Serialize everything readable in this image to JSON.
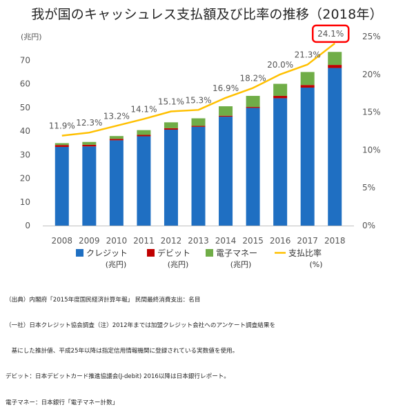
{
  "title": "我が国のキャッシュレス支払額及び比率の推移（2018年）",
  "chart_data": {
    "type": "bar",
    "stacked": true,
    "categories": [
      "2008",
      "2009",
      "2010",
      "2011",
      "2012",
      "2013",
      "2014",
      "2015",
      "2016",
      "2017",
      "2018"
    ],
    "series": [
      {
        "name": "クレジット",
        "unit": "(兆円)",
        "color": "#1f6fc2",
        "values": [
          33.3,
          33.5,
          36.1,
          37.8,
          40.6,
          41.8,
          46.1,
          49.8,
          53.9,
          58.4,
          66.7
        ]
      },
      {
        "name": "デビット",
        "unit": "(兆円)",
        "color": "#c00000",
        "values": [
          0.8,
          0.7,
          0.6,
          0.6,
          0.6,
          0.4,
          0.4,
          0.4,
          1.0,
          1.1,
          1.3
        ]
      },
      {
        "name": "電子マネー",
        "unit": "(兆円)",
        "color": "#70ad47",
        "values": [
          0.8,
          1.2,
          1.2,
          2.0,
          2.5,
          3.2,
          4.0,
          4.7,
          5.1,
          5.5,
          5.5
        ]
      }
    ],
    "line_series": {
      "name": "支払比率",
      "unit": "(%)",
      "color": "#ffc000",
      "values": [
        11.9,
        12.3,
        13.2,
        14.1,
        15.1,
        15.3,
        16.9,
        18.2,
        20.0,
        21.3,
        24.1
      ],
      "labels": [
        "11.9%",
        "12.3%",
        "13.2%",
        "14.1%",
        "15.1%",
        "15.3%",
        "16.9%",
        "18.2%",
        "20.0%",
        "21.3%",
        "24.1%"
      ]
    },
    "y_left": {
      "label": "(兆円)",
      "range": [
        0,
        80
      ],
      "ticks": [
        0,
        10,
        20,
        30,
        40,
        50,
        60,
        70
      ]
    },
    "y_right": {
      "range": [
        0,
        25
      ],
      "ticks": [
        "0%",
        "5%",
        "10%",
        "15%",
        "20%",
        "25%"
      ],
      "tick_values": [
        0,
        5,
        10,
        15,
        20,
        25
      ]
    },
    "highlight": {
      "category": "2018",
      "color": "#ff0000"
    },
    "grid": false,
    "legend_position": "bottom"
  },
  "notes": [
    "（出典）内閣府「2015年度国民経済計算年報」 民間最終消費支出：名目",
    "（一社）日本クレジット協会調査（注）2012年までは加盟クレジット会社へのアンケート調査結果を",
    "　基にした推計値、平成25年以降は指定信用情報機関に登録されている実数値を使用。",
    "デビット：日本デビットカード推進協議会(J-debit) 2016以降は日本銀行レポート。",
    "電子マネー：日本銀行「電子マネー計数」"
  ]
}
